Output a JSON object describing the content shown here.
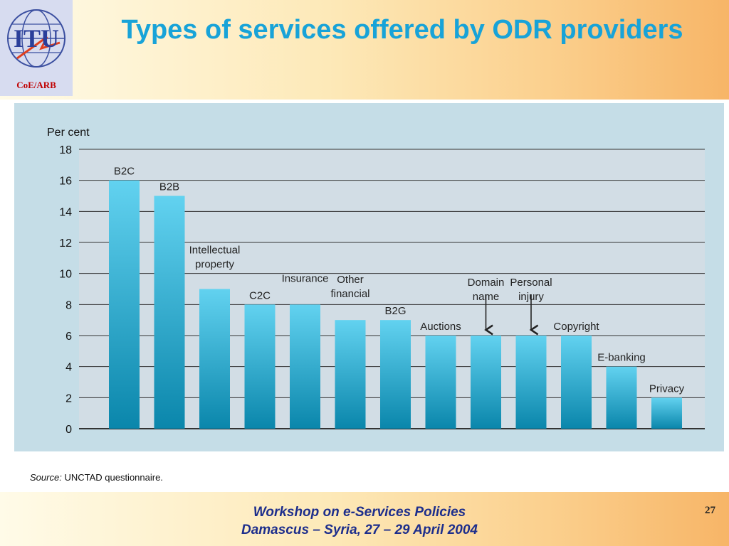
{
  "slide": {
    "title": "Types of services offered by ODR providers",
    "logo_text": "ITU",
    "logo_subtext": "CoE/ARB",
    "source_label": "Source:",
    "source_value": "UNCTAD questionnaire.",
    "footer_line1": "Workshop on e-Services Policies",
    "footer_line2": "Damascus – Syria,   27 – 29 April  2004",
    "page_number": "27"
  },
  "colors": {
    "title": "#18a3d8",
    "bar_top": "#62d2f0",
    "bar_bottom": "#0a86ab",
    "chart_bg": "#c5dde7",
    "footer_text": "#1d2e8c"
  },
  "chart_data": {
    "type": "bar",
    "ylabel": "Per cent",
    "ylim": [
      0,
      18
    ],
    "yticks": [
      0,
      2,
      4,
      6,
      8,
      10,
      12,
      14,
      16,
      18
    ],
    "grid": true,
    "categories": [
      [
        "B2C"
      ],
      [
        "B2B"
      ],
      [
        "Intellectual",
        "property"
      ],
      [
        "C2C"
      ],
      [
        "Insurance"
      ],
      [
        "Other",
        "financial"
      ],
      [
        "B2G"
      ],
      [
        "Auctions"
      ],
      [
        "Domain",
        "name"
      ],
      [
        "Personal",
        "injury"
      ],
      [
        "Copyright"
      ],
      [
        "E-banking"
      ],
      [
        "Privacy"
      ]
    ],
    "values": [
      16,
      15,
      9,
      8,
      8,
      7,
      7,
      6,
      6,
      6,
      6,
      4,
      2
    ]
  }
}
